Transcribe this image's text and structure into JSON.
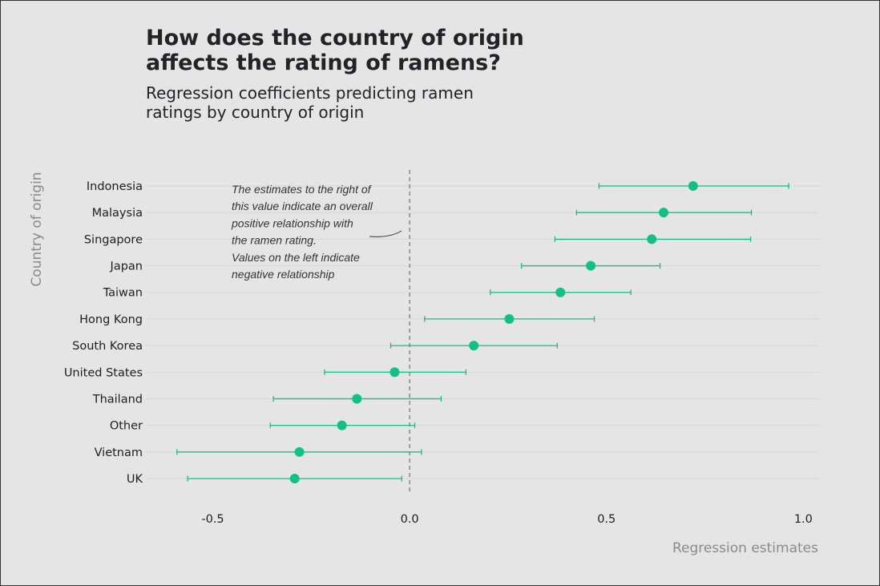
{
  "title": "How does the country of origin affects the rating of ramens?",
  "subtitle": "Regression coefficients predicting ramen ratings by country of origin",
  "chart_data": {
    "type": "scatter",
    "subtype": "coefficient-plot-with-error-bars",
    "title": "How does the country of origin affects the rating of ramens?",
    "subtitle": "Regression coefficients predicting ramen ratings by country of origin",
    "xlabel": "Regression estimates",
    "ylabel": "Country of origin",
    "xlim": [
      -0.67,
      1.04
    ],
    "xticks": [
      -0.5,
      0.0,
      0.5,
      1.0
    ],
    "xtick_labels": [
      "-0.5",
      "0.0",
      "0.5",
      "1.0"
    ],
    "reference_line": 0.0,
    "grid": "horizontal",
    "color": "#12bf86",
    "annotation": [
      "The estimates to the right of",
      "this value indicate an overall",
      "positive relationship with",
      "the ramen rating.",
      "Values on the left indicate",
      "negative relationship"
    ],
    "categories": [
      "Indonesia",
      "Malaysia",
      "Singapore",
      "Japan",
      "Taiwan",
      "Hong Kong",
      "South Korea",
      "United States",
      "Thailand",
      "Other",
      "Vietnam",
      "UK"
    ],
    "estimate": [
      0.72,
      0.645,
      0.615,
      0.46,
      0.383,
      0.253,
      0.163,
      -0.038,
      -0.134,
      -0.172,
      -0.28,
      -0.292
    ],
    "lower": [
      0.481,
      0.424,
      0.369,
      0.284,
      0.205,
      0.038,
      -0.048,
      -0.216,
      -0.346,
      -0.354,
      -0.591,
      -0.564
    ],
    "upper": [
      0.963,
      0.868,
      0.866,
      0.636,
      0.562,
      0.469,
      0.375,
      0.143,
      0.08,
      0.013,
      0.03,
      -0.02
    ]
  }
}
